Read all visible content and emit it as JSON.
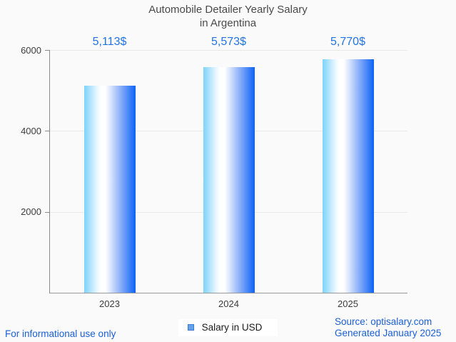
{
  "title": {
    "line1": "Automobile Detailer Yearly Salary",
    "line2": "in Argentina"
  },
  "legend": {
    "label": "Salary in USD",
    "marker_fill": "#66a2e8",
    "marker_border": "#3a7dd7"
  },
  "footer": {
    "left": "For informational use only",
    "source": "Source: optisalary.com",
    "generated": "Generated January 2025"
  },
  "colors": {
    "background": "#fafafa",
    "title_text": "#4a4a4a",
    "axis": "#8a8a8a",
    "gridline": "#e8e8e8",
    "tick_text": "#3d3d3d",
    "value_text": "#2273e5",
    "footer_text": "#1a5fd6"
  },
  "chart_data": {
    "type": "bar",
    "title": "Automobile Detailer Yearly Salary in Argentina",
    "categories": [
      "2023",
      "2024",
      "2025"
    ],
    "values": [
      5113,
      5573,
      5770
    ],
    "value_labels": [
      "5,113$",
      "5,573$",
      "5,770$"
    ],
    "series_name": "Salary in USD",
    "xlabel": "",
    "ylabel": "",
    "ylim": [
      0,
      6000
    ],
    "yticks": [
      2000,
      4000,
      6000
    ],
    "grid": true,
    "legend_position": "bottom",
    "bar_gradient": [
      [
        "#7ed3fb",
        0
      ],
      [
        "#b9e7fd",
        14
      ],
      [
        "#eef9fe",
        26
      ],
      [
        "#ffffff",
        33
      ],
      [
        "#ffffff",
        41
      ],
      [
        "#d8e3fd",
        52
      ],
      [
        "#aac4fa",
        63
      ],
      [
        "#7da6f8",
        74
      ],
      [
        "#3f82f7",
        88
      ],
      [
        "#0b63f6",
        100
      ]
    ]
  }
}
